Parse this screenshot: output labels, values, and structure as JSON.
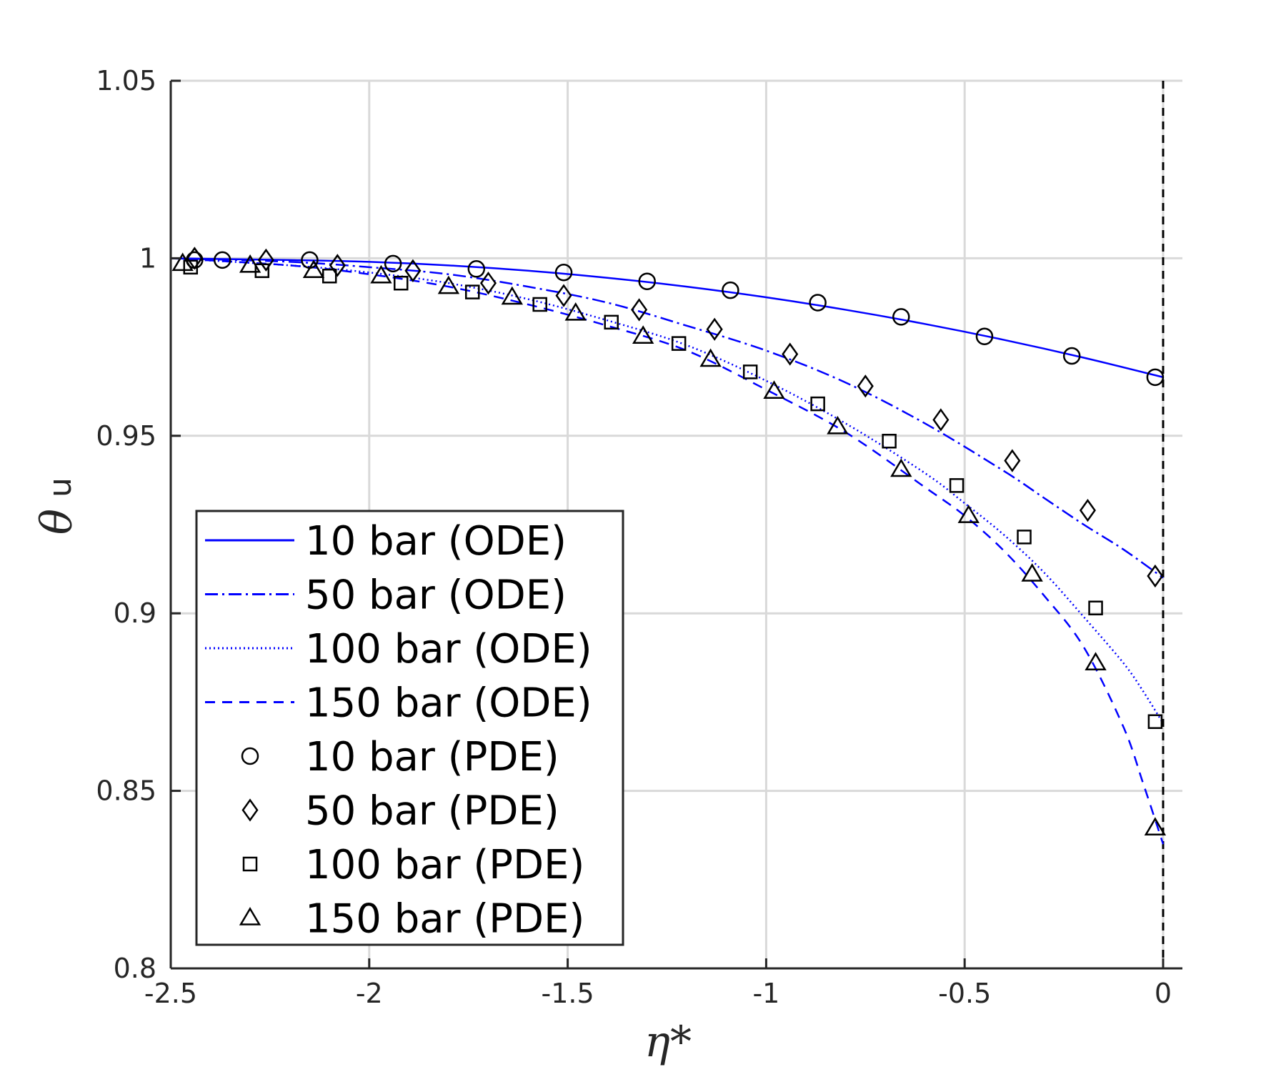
{
  "chart_data": {
    "type": "line",
    "xlabel": "η*",
    "ylabel_main": "θ",
    "ylabel_sub": "u",
    "xlim": [
      -2.5,
      0.05
    ],
    "ylim": [
      0.8,
      1.05
    ],
    "xticks": [
      -2.5,
      -2,
      -1.5,
      -1,
      -0.5,
      0
    ],
    "xtick_labels": [
      "-2.5",
      "-2",
      "-1.5",
      "-1",
      "-0.5",
      "0"
    ],
    "yticks": [
      0.8,
      0.85,
      0.9,
      0.95,
      1,
      1.05
    ],
    "ytick_labels": [
      "0.8",
      "0.85",
      "0.9",
      "0.95",
      "1",
      "1.05"
    ],
    "grid": true,
    "legend_position": "bottom-left",
    "vertical_reference_line": {
      "x": 0,
      "style": "dashed",
      "color": "#000000"
    },
    "series": [
      {
        "name": "10 bar (ODE)",
        "kind": "line",
        "dash": "solid",
        "color": "#0000ff",
        "x": [
          -2.5,
          -2.2,
          -2.0,
          -1.8,
          -1.6,
          -1.4,
          -1.2,
          -1.0,
          -0.8,
          -0.6,
          -0.4,
          -0.2,
          0.0
        ],
        "y": [
          1.0,
          0.9995,
          0.999,
          0.998,
          0.9965,
          0.9945,
          0.992,
          0.989,
          0.9855,
          0.9815,
          0.977,
          0.972,
          0.9665
        ]
      },
      {
        "name": "50 bar (ODE)",
        "kind": "line",
        "dash": "dashdot",
        "color": "#0000ff",
        "x": [
          -2.5,
          -2.2,
          -2.0,
          -1.8,
          -1.6,
          -1.4,
          -1.2,
          -1.0,
          -0.8,
          -0.6,
          -0.4,
          -0.3,
          -0.2,
          -0.1,
          0.0
        ],
        "y": [
          1.0,
          0.999,
          0.9975,
          0.9955,
          0.992,
          0.9875,
          0.981,
          0.974,
          0.965,
          0.9535,
          0.94,
          0.9325,
          0.925,
          0.918,
          0.91
        ]
      },
      {
        "name": "100 bar (ODE)",
        "kind": "line",
        "dash": "dotted",
        "color": "#0000ff",
        "x": [
          -2.5,
          -2.2,
          -2.0,
          -1.8,
          -1.6,
          -1.4,
          -1.2,
          -1.0,
          -0.8,
          -0.6,
          -0.5,
          -0.4,
          -0.3,
          -0.2,
          -0.1,
          -0.05,
          0.0
        ],
        "y": [
          1.0,
          0.998,
          0.996,
          0.993,
          0.9885,
          0.9825,
          0.9755,
          0.9655,
          0.9535,
          0.9395,
          0.931,
          0.922,
          0.9115,
          0.899,
          0.886,
          0.878,
          0.869
        ]
      },
      {
        "name": "150 bar (ODE)",
        "kind": "line",
        "dash": "dashed",
        "color": "#0000ff",
        "x": [
          -2.5,
          -2.2,
          -2.0,
          -1.8,
          -1.6,
          -1.4,
          -1.2,
          -1.0,
          -0.8,
          -0.6,
          -0.5,
          -0.4,
          -0.3,
          -0.2,
          -0.1,
          -0.05,
          0.0
        ],
        "y": [
          1.0,
          0.998,
          0.9955,
          0.992,
          0.987,
          0.981,
          0.974,
          0.963,
          0.951,
          0.9355,
          0.9275,
          0.9175,
          0.905,
          0.8905,
          0.868,
          0.852,
          0.835
        ]
      },
      {
        "name": "10 bar (PDE)",
        "kind": "markers",
        "marker": "circle",
        "x": [
          -2.44,
          -2.37,
          -2.15,
          -1.94,
          -1.73,
          -1.51,
          -1.3,
          -1.09,
          -0.87,
          -0.66,
          -0.45,
          -0.23,
          -0.02
        ],
        "y": [
          0.9995,
          0.9995,
          0.9995,
          0.9985,
          0.997,
          0.996,
          0.9935,
          0.991,
          0.9875,
          0.9835,
          0.978,
          0.9725,
          0.9665
        ]
      },
      {
        "name": "50 bar (PDE)",
        "kind": "markers",
        "marker": "diamond",
        "x": [
          -2.44,
          -2.26,
          -2.08,
          -1.89,
          -1.7,
          -1.51,
          -1.32,
          -1.13,
          -0.94,
          -0.75,
          -0.56,
          -0.38,
          -0.19,
          -0.02
        ],
        "y": [
          1.0,
          0.9995,
          0.998,
          0.9965,
          0.993,
          0.9895,
          0.9855,
          0.98,
          0.973,
          0.964,
          0.9545,
          0.943,
          0.929,
          0.9105
        ]
      },
      {
        "name": "100 bar (PDE)",
        "kind": "markers",
        "marker": "square",
        "x": [
          -2.45,
          -2.27,
          -2.1,
          -1.92,
          -1.74,
          -1.57,
          -1.39,
          -1.22,
          -1.04,
          -0.87,
          -0.69,
          -0.52,
          -0.35,
          -0.17,
          -0.02
        ],
        "y": [
          0.9975,
          0.9965,
          0.995,
          0.993,
          0.9905,
          0.987,
          0.982,
          0.976,
          0.968,
          0.959,
          0.9485,
          0.936,
          0.9215,
          0.9015,
          0.8695
        ]
      },
      {
        "name": "150 bar (PDE)",
        "kind": "markers",
        "marker": "triangle",
        "x": [
          -2.47,
          -2.3,
          -2.14,
          -1.97,
          -1.8,
          -1.64,
          -1.48,
          -1.31,
          -1.14,
          -0.98,
          -0.82,
          -0.66,
          -0.49,
          -0.33,
          -0.17,
          -0.02
        ],
        "y": [
          0.9985,
          0.998,
          0.9965,
          0.995,
          0.992,
          0.989,
          0.9845,
          0.978,
          0.9715,
          0.9625,
          0.9525,
          0.9405,
          0.9275,
          0.911,
          0.886,
          0.8395
        ]
      }
    ]
  }
}
